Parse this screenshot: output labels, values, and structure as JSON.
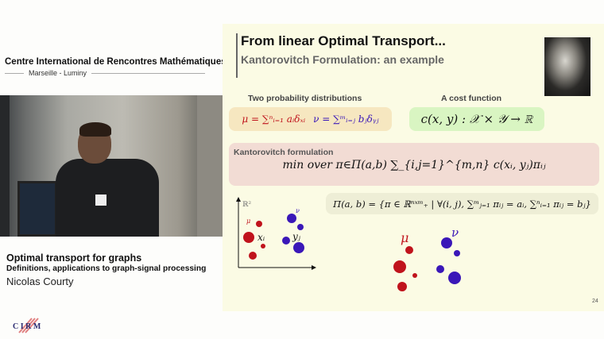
{
  "organizer": {
    "name": "Centre International de Rencontres Mathématiques",
    "location": "Marseille - Luminy"
  },
  "talk": {
    "title": "Optimal transport for graphs",
    "subtitle": "Definitions, applications to graph-signal processing",
    "speaker": "Nicolas Courty",
    "logo_text": "CIRM"
  },
  "slide": {
    "title": "From linear Optimal Transport...",
    "subtitle": "Kantorovitch Formulation: an example",
    "dist_label": "Two probability distributions",
    "cost_label": "A cost function",
    "dist_formula_mu": "μ = ∑ⁿᵢ₌₁ aᵢδₓᵢ",
    "dist_formula_nu": "ν = ∑ᵐᵢ₌ⱼ bⱼδᵧⱼ",
    "cost_formula": "c(x, y) : 𝒳 × 𝒴 → ℝ",
    "kanto_label": "Kantorovitch formulation",
    "kanto_formula": "min over π∈Π(a,b) ∑_{i,j=1}^{m,n} c(xᵢ, yⱼ)πᵢⱼ",
    "coupling_formula": "Π(a, b) = {π ∈ ℝⁿˣᵐ₊ | ∀(i, j), ∑ᵐⱼ₌₁ πᵢⱼ = aᵢ, ∑ⁿᵢ₌₁ πᵢⱼ = bⱼ}",
    "plot_labels": {
      "space": "ℝ²",
      "mu": "μ",
      "nu": "ν",
      "x": "xᵢ",
      "y": "yⱼ"
    },
    "page_number": "24"
  },
  "colors": {
    "mu": "#c0131c",
    "nu": "#3a17b8",
    "slide_bg": "#fbfbe4"
  }
}
